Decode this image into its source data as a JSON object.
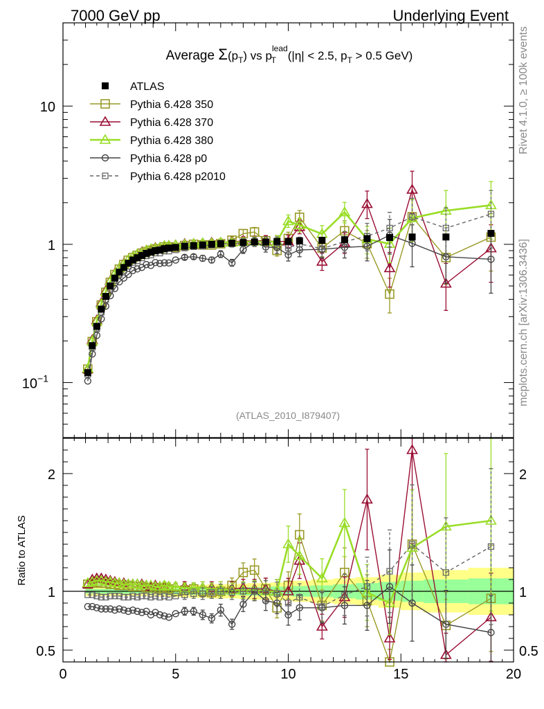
{
  "header": {
    "left": "7000 GeV pp",
    "right": "Underlying Event"
  },
  "side": {
    "rivet": "Rivet 4.1.0, ≥ 100k events",
    "mcplots": "mcplots.cern.ch [arXiv:1306.3436]"
  },
  "chart_data": {
    "type": "scatter",
    "title": "Average Σ(pT) vs pT lead (|η| < 2.5, pT > 0.5 GeV)",
    "title_parts": {
      "t1": "Average ",
      "sigma": "Σ",
      "t2": "(p",
      "t2sub": "T",
      "t3": ") vs p",
      "t3sup": "lead",
      "t3sub": "T",
      "t4": " (|η| < 2.5, p",
      "t4sub": "T",
      "t5": " > 0.5 GeV)"
    },
    "analysis_label": "(ATLAS_2010_I879407)",
    "xlim": [
      0,
      20
    ],
    "ylim_main": [
      0.04,
      40
    ],
    "ylim_ratio": [
      0.4,
      2.3
    ],
    "ratio_ylabel": "Ratio to ATLAS",
    "x_ticks": [
      0,
      5,
      10,
      15,
      20
    ],
    "main_y_ticks": [
      {
        "v": 0.1,
        "base": "10",
        "exp": "−1"
      },
      {
        "v": 1,
        "base": "1",
        "exp": ""
      },
      {
        "v": 10,
        "base": "10",
        "exp": ""
      }
    ],
    "ratio_y_ticks": [
      0.5,
      1,
      2
    ],
    "x": [
      1.1,
      1.3,
      1.5,
      1.7,
      1.9,
      2.1,
      2.3,
      2.5,
      2.7,
      2.9,
      3.1,
      3.3,
      3.5,
      3.7,
      3.9,
      4.1,
      4.3,
      4.5,
      4.7,
      5.0,
      5.4,
      5.8,
      6.2,
      6.6,
      7.0,
      7.5,
      8.0,
      8.5,
      9.0,
      9.5,
      10.0,
      10.5,
      11.5,
      12.5,
      13.5,
      14.5,
      15.5,
      17.0,
      19.0
    ],
    "atlas": [
      0.118,
      0.185,
      0.255,
      0.34,
      0.42,
      0.5,
      0.57,
      0.63,
      0.68,
      0.73,
      0.77,
      0.8,
      0.83,
      0.86,
      0.88,
      0.9,
      0.91,
      0.93,
      0.94,
      0.95,
      0.97,
      0.98,
      0.99,
      1.0,
      1.01,
      1.02,
      1.03,
      1.04,
      1.04,
      1.05,
      1.05,
      1.06,
      1.07,
      1.08,
      1.1,
      1.12,
      1.13,
      1.13,
      1.2
    ],
    "series": [
      {
        "name": "Pythia 6.428 350",
        "color": "#999926",
        "marker": "square-open",
        "line": "solid",
        "ratio": [
          1.06,
          1.07,
          1.08,
          1.07,
          1.07,
          1.06,
          1.06,
          1.05,
          1.05,
          1.05,
          1.04,
          1.04,
          1.04,
          1.03,
          1.03,
          1.03,
          1.02,
          1.03,
          1.02,
          1.0,
          1.01,
          1.02,
          1.0,
          0.99,
          1.0,
          1.05,
          1.16,
          1.18,
          1.02,
          0.86,
          1.05,
          1.48,
          0.88,
          1.16,
          0.92,
          0.39,
          1.4,
          0.71,
          0.94
        ],
        "err": [
          0.02,
          0.02,
          0.02,
          0.02,
          0.02,
          0.02,
          0.02,
          0.02,
          0.02,
          0.02,
          0.02,
          0.02,
          0.02,
          0.02,
          0.02,
          0.02,
          0.02,
          0.03,
          0.03,
          0.03,
          0.04,
          0.04,
          0.05,
          0.05,
          0.06,
          0.06,
          0.07,
          0.08,
          0.09,
          0.1,
          0.11,
          0.12,
          0.15,
          0.18,
          0.24,
          0.3,
          0.36,
          0.4,
          0.48
        ]
      },
      {
        "name": "Pythia 6.428 370",
        "color": "#990d33",
        "marker": "triangle-open",
        "line": "solid",
        "ratio": [
          1.06,
          1.1,
          1.11,
          1.11,
          1.1,
          1.09,
          1.08,
          1.07,
          1.07,
          1.06,
          1.06,
          1.06,
          1.06,
          1.05,
          1.04,
          1.05,
          1.04,
          1.04,
          1.04,
          1.04,
          1.04,
          1.03,
          1.03,
          1.03,
          1.02,
          1.02,
          1.03,
          1.02,
          1.02,
          1.0,
          1.0,
          1.26,
          0.7,
          0.95,
          1.78,
          0.6,
          2.2,
          0.46,
          0.78
        ],
        "err": [
          0.02,
          0.02,
          0.02,
          0.02,
          0.02,
          0.02,
          0.02,
          0.02,
          0.02,
          0.02,
          0.02,
          0.02,
          0.02,
          0.02,
          0.02,
          0.02,
          0.02,
          0.03,
          0.03,
          0.03,
          0.04,
          0.04,
          0.05,
          0.05,
          0.06,
          0.06,
          0.07,
          0.08,
          0.09,
          0.1,
          0.11,
          0.12,
          0.15,
          0.18,
          0.24,
          0.3,
          0.36,
          0.4,
          0.48
        ]
      },
      {
        "name": "Pythia 6.428 380",
        "color": "#99dd26",
        "marker": "triangle-open",
        "line": "solid-thick",
        "ratio": [
          1.07,
          1.08,
          1.09,
          1.09,
          1.08,
          1.08,
          1.07,
          1.07,
          1.06,
          1.06,
          1.06,
          1.06,
          1.05,
          1.05,
          1.05,
          1.04,
          1.04,
          1.05,
          1.04,
          1.04,
          1.03,
          1.03,
          1.03,
          1.02,
          1.02,
          1.01,
          1.01,
          1.01,
          1.0,
          1.0,
          1.4,
          1.3,
          1.11,
          1.58,
          0.99,
          0.9,
          1.37,
          1.55,
          1.6
        ],
        "err": [
          0.02,
          0.02,
          0.02,
          0.02,
          0.02,
          0.02,
          0.02,
          0.02,
          0.02,
          0.02,
          0.02,
          0.02,
          0.02,
          0.02,
          0.02,
          0.02,
          0.02,
          0.03,
          0.03,
          0.03,
          0.04,
          0.04,
          0.05,
          0.05,
          0.06,
          0.06,
          0.07,
          0.08,
          0.09,
          0.1,
          0.11,
          0.12,
          0.15,
          0.18,
          0.24,
          0.3,
          0.36,
          0.4,
          0.48
        ]
      },
      {
        "name": "Pythia 6.428 p0",
        "color": "#444444",
        "marker": "circle-open",
        "line": "solid",
        "ratio": [
          0.87,
          0.87,
          0.86,
          0.85,
          0.85,
          0.85,
          0.84,
          0.85,
          0.84,
          0.83,
          0.84,
          0.83,
          0.82,
          0.83,
          0.8,
          0.82,
          0.8,
          0.79,
          0.78,
          0.81,
          0.83,
          0.83,
          0.8,
          0.77,
          0.84,
          0.72,
          0.89,
          1.0,
          0.92,
          0.9,
          0.8,
          0.86,
          0.86,
          0.88,
          0.88,
          1.04,
          0.9,
          0.72,
          0.65
        ],
        "err": [
          0.02,
          0.02,
          0.02,
          0.02,
          0.02,
          0.02,
          0.02,
          0.02,
          0.02,
          0.02,
          0.02,
          0.02,
          0.02,
          0.02,
          0.02,
          0.02,
          0.02,
          0.03,
          0.03,
          0.03,
          0.04,
          0.04,
          0.05,
          0.05,
          0.06,
          0.06,
          0.07,
          0.08,
          0.09,
          0.1,
          0.11,
          0.12,
          0.15,
          0.18,
          0.24,
          0.3,
          0.36,
          0.4,
          0.48
        ]
      },
      {
        "name": "Pythia 6.428 p2010",
        "color": "#666666",
        "marker": "square-open-small",
        "line": "dashed",
        "ratio": [
          0.97,
          0.97,
          0.96,
          0.95,
          0.95,
          0.96,
          0.96,
          0.96,
          0.95,
          0.95,
          0.96,
          0.95,
          0.96,
          0.96,
          0.95,
          0.96,
          0.95,
          0.96,
          0.95,
          0.96,
          0.97,
          0.98,
          0.98,
          0.99,
          1.0,
          0.99,
          1.0,
          1.0,
          1.0,
          0.98,
          0.9,
          0.95,
          0.87,
          0.97,
          1.04,
          1.17,
          1.4,
          1.16,
          1.38
        ],
        "err": [
          0.02,
          0.02,
          0.02,
          0.02,
          0.02,
          0.02,
          0.02,
          0.02,
          0.02,
          0.02,
          0.02,
          0.02,
          0.02,
          0.02,
          0.02,
          0.02,
          0.02,
          0.03,
          0.03,
          0.03,
          0.04,
          0.04,
          0.05,
          0.05,
          0.06,
          0.06,
          0.07,
          0.08,
          0.09,
          0.1,
          0.11,
          0.12,
          0.15,
          0.18,
          0.24,
          0.3,
          0.36,
          0.4,
          0.48
        ]
      }
    ],
    "legend": {
      "atlas": "ATLAS",
      "placement": "top-left"
    },
    "band_x_edges": [
      1.0,
      1.2,
      1.4,
      1.6,
      1.8,
      2.0,
      2.2,
      2.4,
      2.6,
      2.8,
      3.0,
      3.2,
      3.4,
      3.6,
      3.8,
      4.0,
      4.2,
      4.4,
      4.6,
      4.8,
      5.2,
      5.6,
      6.0,
      6.4,
      6.8,
      7.2,
      7.8,
      8.2,
      8.8,
      9.2,
      9.8,
      10.2,
      11.0,
      12.0,
      13.0,
      14.0,
      15.0,
      16.0,
      18.0,
      20.0
    ],
    "band_stat": [
      0.02,
      0.02,
      0.02,
      0.02,
      0.02,
      0.02,
      0.02,
      0.02,
      0.02,
      0.02,
      0.02,
      0.02,
      0.02,
      0.02,
      0.02,
      0.02,
      0.02,
      0.025,
      0.025,
      0.025,
      0.025,
      0.03,
      0.03,
      0.03,
      0.03,
      0.03,
      0.035,
      0.035,
      0.035,
      0.04,
      0.04,
      0.045,
      0.05,
      0.06,
      0.07,
      0.08,
      0.09,
      0.1,
      0.11
    ],
    "band_total": [
      0.04,
      0.04,
      0.04,
      0.04,
      0.04,
      0.04,
      0.04,
      0.04,
      0.04,
      0.04,
      0.04,
      0.04,
      0.04,
      0.04,
      0.04,
      0.04,
      0.045,
      0.045,
      0.045,
      0.05,
      0.05,
      0.055,
      0.055,
      0.06,
      0.06,
      0.06,
      0.065,
      0.07,
      0.07,
      0.075,
      0.08,
      0.09,
      0.1,
      0.11,
      0.12,
      0.14,
      0.16,
      0.18,
      0.2
    ],
    "colors": {
      "band_stat": "#99ff99",
      "band_total": "#ffff88",
      "axis": "#000000",
      "label_gray": "#888888"
    }
  }
}
